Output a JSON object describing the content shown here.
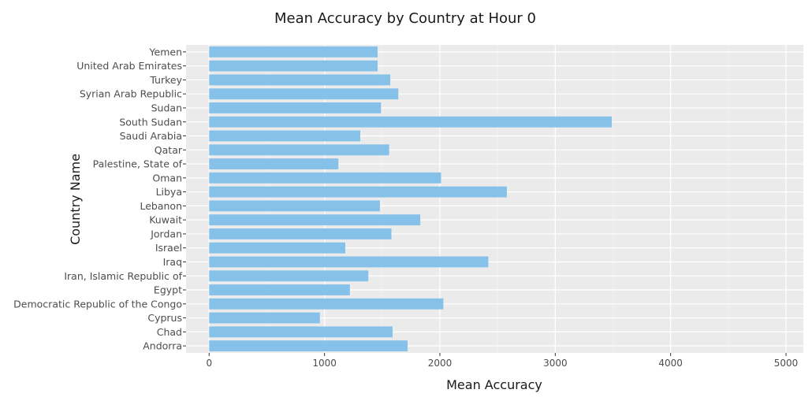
{
  "chart_data": {
    "type": "bar",
    "orientation": "horizontal",
    "title": "Mean Accuracy by Country at Hour 0",
    "xlabel": "Mean Accuracy",
    "ylabel": "Country Name",
    "xlim": [
      -200,
      5150
    ],
    "xticks": [
      0,
      1000,
      2000,
      3000,
      4000,
      5000
    ],
    "grid": true,
    "legend": "none",
    "categories": [
      "Yemen",
      "United Arab Emirates",
      "Turkey",
      "Syrian Arab Republic",
      "Sudan",
      "South Sudan",
      "Saudi Arabia",
      "Qatar",
      "Palestine, State of",
      "Oman",
      "Libya",
      "Lebanon",
      "Kuwait",
      "Jordan",
      "Israel",
      "Iraq",
      "Iran, Islamic Republic of",
      "Egypt",
      "Democratic Republic of the Congo",
      "Cyprus",
      "Chad",
      "Andorra"
    ],
    "values": [
      1460,
      1460,
      1570,
      1640,
      1490,
      3490,
      1310,
      1560,
      1120,
      2010,
      2580,
      1480,
      1830,
      1580,
      1180,
      2420,
      1380,
      1220,
      2030,
      960,
      1590,
      1720
    ],
    "colors": {
      "bar": "#85C1E9",
      "panel": "#EBEBEB",
      "grid_major": "#FFFFFF",
      "grid_minor": "#F5F5F5",
      "text": "#4D4D4D",
      "title": "#1A1A1A"
    }
  }
}
